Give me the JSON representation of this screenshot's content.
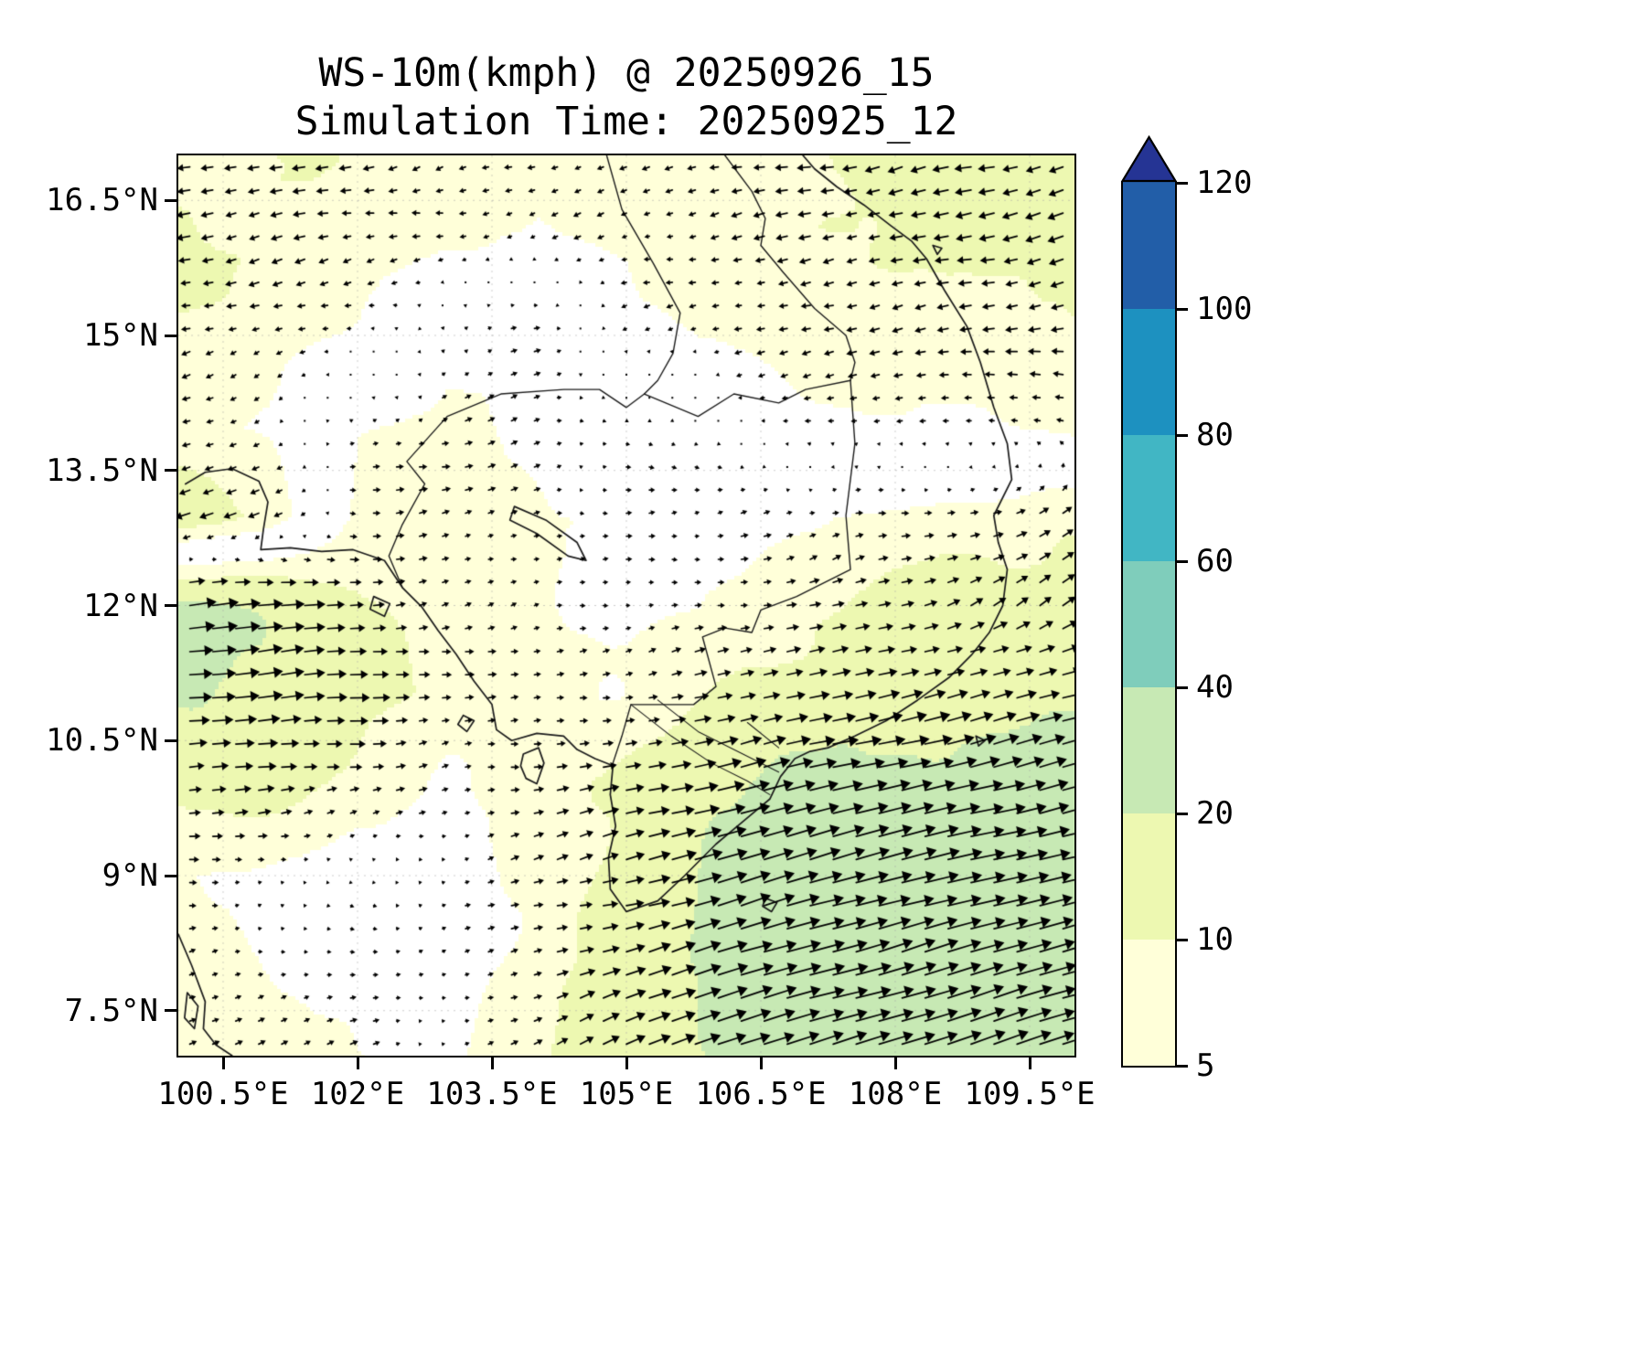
{
  "title": "WS-10m(kmph) @ 20250926_15",
  "subtitle": "Simulation Time: 20250925_12",
  "colorbar": {
    "levels": [
      5,
      10,
      20,
      40,
      60,
      80,
      100,
      120
    ],
    "tick_labels": [
      "5",
      "10",
      "20",
      "40",
      "60",
      "80",
      "100",
      "120"
    ],
    "band_colors": [
      "#ffffd9",
      "#edf8b1",
      "#c7e9b4",
      "#7fcdbb",
      "#41b6c4",
      "#1d91c0",
      "#225ea8"
    ],
    "over_color": "#253494",
    "under_color": "#ffffff",
    "extend": "max"
  },
  "chart_data": {
    "type": "heatmap",
    "subtype": "filled-contour 10m wind speed map with quiver wind vectors and coastlines",
    "title": "WS-10m(kmph) @ 20250926_15",
    "subtitle": "Simulation Time: 20250925_12",
    "variable": "WS-10m",
    "units": "kmph",
    "valid_time": "20250926_15",
    "simulation_time": "20250925_12",
    "lon_range": [
      100,
      110
    ],
    "lat_range": [
      7,
      17
    ],
    "x_ticks": [
      "100.5°E",
      "102°E",
      "103.5°E",
      "105°E",
      "106.5°E",
      "108°E",
      "109.5°E"
    ],
    "x_tick_values": [
      100.5,
      102,
      103.5,
      105,
      106.5,
      108,
      109.5
    ],
    "y_ticks": [
      "16.5°N",
      "15°N",
      "13.5°N",
      "12°N",
      "10.5°N",
      "9°N",
      "7.5°N"
    ],
    "y_tick_values": [
      16.5,
      15,
      13.5,
      12,
      10.5,
      9,
      7.5
    ],
    "levels": [
      5,
      10,
      20,
      40,
      60,
      80,
      100,
      120
    ],
    "level_colors": [
      "#ffffd9",
      "#edf8b1",
      "#c7e9b4",
      "#7fcdbb",
      "#41b6c4",
      "#1d91c0",
      "#225ea8"
    ],
    "under_color": "#ffffff",
    "over_color": "#253494",
    "grid": true,
    "legend_position": "right-colorbar",
    "wind_grid": {
      "lon": [
        100,
        101,
        102,
        103,
        104,
        105,
        106,
        107,
        108,
        109,
        110
      ],
      "lat": [
        7,
        8,
        9,
        10,
        11,
        12,
        13,
        14,
        15,
        16,
        17
      ],
      "u_kmph": [
        [
          8,
          7,
          5,
          4,
          8,
          18,
          26,
          28,
          30,
          30,
          30
        ],
        [
          7,
          5,
          3,
          3,
          7,
          16,
          26,
          29,
          30,
          30,
          30
        ],
        [
          6,
          4,
          2,
          3,
          8,
          15,
          25,
          28,
          29,
          29,
          28
        ],
        [
          12,
          14,
          8,
          5,
          8,
          14,
          22,
          26,
          27,
          27,
          26
        ],
        [
          20,
          22,
          16,
          8,
          6,
          7,
          12,
          16,
          18,
          18,
          17
        ],
        [
          22,
          20,
          12,
          7,
          5,
          5,
          6,
          8,
          10,
          11,
          10
        ],
        [
          -14,
          -8,
          6,
          6,
          5,
          4,
          4,
          5,
          6,
          7,
          8
        ],
        [
          -6,
          -4,
          4,
          5,
          4,
          3,
          3,
          -4,
          -5,
          -5,
          -6
        ],
        [
          -8,
          -6,
          -4,
          4,
          4,
          -3,
          -5,
          -7,
          -8,
          -9,
          -10
        ],
        [
          -10,
          -9,
          -7,
          -5,
          -4,
          -5,
          -7,
          -9,
          -11,
          -12,
          -12
        ],
        [
          -12,
          -11,
          -9,
          -8,
          -7,
          -8,
          -9,
          -11,
          -13,
          -14,
          -14
        ]
      ],
      "v_kmph": [
        [
          3,
          2,
          1,
          1,
          3,
          6,
          8,
          9,
          9,
          9,
          9
        ],
        [
          2,
          1,
          0,
          1,
          2,
          5,
          8,
          9,
          9,
          9,
          9
        ],
        [
          2,
          1,
          0,
          1,
          2,
          4,
          7,
          8,
          8,
          8,
          8
        ],
        [
          2,
          2,
          1,
          1,
          2,
          3,
          5,
          7,
          7,
          7,
          7
        ],
        [
          2,
          2,
          2,
          1,
          1,
          1,
          2,
          3,
          4,
          5,
          5
        ],
        [
          2,
          2,
          1,
          1,
          1,
          1,
          1,
          2,
          4,
          6,
          6
        ],
        [
          -5,
          -3,
          1,
          1,
          1,
          1,
          0,
          1,
          2,
          3,
          4
        ],
        [
          -2,
          -1,
          1,
          1,
          1,
          0,
          0,
          -1,
          -1,
          0,
          2
        ],
        [
          -2,
          -2,
          -1,
          1,
          1,
          -1,
          -1,
          -2,
          -2,
          -2,
          -1
        ],
        [
          -3,
          -2,
          -2,
          -1,
          -1,
          -1,
          -2,
          -2,
          -3,
          -3,
          -3
        ],
        [
          -3,
          -3,
          -2,
          -2,
          -2,
          -2,
          -2,
          -3,
          -3,
          -3,
          -3
        ]
      ]
    },
    "geo": {
      "coastlines": [
        [
          [
            100.08,
            13.35
          ],
          [
            100.3,
            13.48
          ],
          [
            100.6,
            13.52
          ],
          [
            100.9,
            13.38
          ],
          [
            101.0,
            13.15
          ],
          [
            100.95,
            12.85
          ],
          [
            100.92,
            12.62
          ],
          [
            101.25,
            12.64
          ],
          [
            101.6,
            12.6
          ],
          [
            101.95,
            12.62
          ],
          [
            102.3,
            12.5
          ],
          [
            102.5,
            12.2
          ],
          [
            102.72,
            11.98
          ],
          [
            102.9,
            11.72
          ],
          [
            103.1,
            11.46
          ],
          [
            103.3,
            11.16
          ],
          [
            103.5,
            10.9
          ],
          [
            103.55,
            10.62
          ],
          [
            103.72,
            10.5
          ],
          [
            104.0,
            10.58
          ],
          [
            104.3,
            10.55
          ],
          [
            104.45,
            10.4
          ],
          [
            104.65,
            10.3
          ],
          [
            104.85,
            10.22
          ],
          [
            104.82,
            9.9
          ],
          [
            104.88,
            9.55
          ],
          [
            104.8,
            9.2
          ],
          [
            104.82,
            8.85
          ],
          [
            105.0,
            8.6
          ],
          [
            105.35,
            8.72
          ],
          [
            105.65,
            9.0
          ],
          [
            106.0,
            9.35
          ],
          [
            106.3,
            9.6
          ],
          [
            106.6,
            9.85
          ],
          [
            106.72,
            10.1
          ],
          [
            106.88,
            10.3
          ],
          [
            107.05,
            10.38
          ],
          [
            107.25,
            10.42
          ],
          [
            107.55,
            10.55
          ],
          [
            107.9,
            10.72
          ],
          [
            108.25,
            10.95
          ],
          [
            108.6,
            11.2
          ],
          [
            108.85,
            11.45
          ],
          [
            109.05,
            11.7
          ],
          [
            109.2,
            12.0
          ],
          [
            109.25,
            12.4
          ],
          [
            109.15,
            12.7
          ],
          [
            109.1,
            13.0
          ],
          [
            109.3,
            13.4
          ],
          [
            109.25,
            13.8
          ],
          [
            109.1,
            14.2
          ],
          [
            108.95,
            14.7
          ],
          [
            108.8,
            15.1
          ],
          [
            108.55,
            15.5
          ],
          [
            108.35,
            15.85
          ],
          [
            108.18,
            16.05
          ],
          [
            107.95,
            16.22
          ],
          [
            107.65,
            16.45
          ],
          [
            107.35,
            16.65
          ],
          [
            107.1,
            16.85
          ],
          [
            106.97,
            17.0
          ]
        ],
        [
          [
            100.0,
            8.35
          ],
          [
            100.15,
            8.0
          ],
          [
            100.3,
            7.6
          ],
          [
            100.28,
            7.3
          ],
          [
            100.42,
            7.12
          ],
          [
            100.6,
            7.0
          ]
        ],
        [
          [
            100.1,
            7.7
          ],
          [
            100.22,
            7.55
          ],
          [
            100.18,
            7.3
          ],
          [
            100.07,
            7.42
          ],
          [
            100.1,
            7.7
          ]
        ],
        [
          [
            103.85,
            10.35
          ],
          [
            104.02,
            10.42
          ],
          [
            104.08,
            10.25
          ],
          [
            104.0,
            10.02
          ],
          [
            103.88,
            10.08
          ],
          [
            103.82,
            10.22
          ],
          [
            103.85,
            10.35
          ]
        ],
        [
          [
            102.18,
            12.1
          ],
          [
            102.36,
            12.02
          ],
          [
            102.3,
            11.88
          ],
          [
            102.14,
            11.96
          ],
          [
            102.18,
            12.1
          ]
        ],
        [
          [
            103.18,
            10.78
          ],
          [
            103.3,
            10.72
          ],
          [
            103.22,
            10.6
          ],
          [
            103.12,
            10.68
          ],
          [
            103.18,
            10.78
          ]
        ],
        [
          [
            106.55,
            8.75
          ],
          [
            106.68,
            8.7
          ],
          [
            106.62,
            8.6
          ],
          [
            106.52,
            8.66
          ],
          [
            106.55,
            8.75
          ]
        ],
        [
          [
            108.42,
            16.0
          ],
          [
            108.52,
            15.97
          ],
          [
            108.47,
            15.9
          ],
          [
            108.42,
            16.0
          ]
        ],
        [
          [
            108.9,
            10.55
          ],
          [
            109.0,
            10.5
          ],
          [
            108.93,
            10.44
          ],
          [
            108.9,
            10.55
          ]
        ],
        [
          [
            103.75,
            13.1
          ],
          [
            104.1,
            12.95
          ],
          [
            104.45,
            12.7
          ],
          [
            104.55,
            12.5
          ],
          [
            104.35,
            12.55
          ],
          [
            104.0,
            12.8
          ],
          [
            103.7,
            12.95
          ],
          [
            103.75,
            13.1
          ]
        ]
      ],
      "borders": [
        [
          [
            102.5,
            12.2
          ],
          [
            102.35,
            12.55
          ],
          [
            102.5,
            12.9
          ],
          [
            102.75,
            13.35
          ],
          [
            102.55,
            13.6
          ],
          [
            103.0,
            14.1
          ],
          [
            103.6,
            14.35
          ],
          [
            104.3,
            14.4
          ],
          [
            104.7,
            14.4
          ],
          [
            105.0,
            14.2
          ],
          [
            105.2,
            14.35
          ]
        ],
        [
          [
            105.2,
            14.35
          ],
          [
            105.8,
            14.1
          ],
          [
            106.2,
            14.35
          ],
          [
            106.7,
            14.25
          ],
          [
            107.0,
            14.4
          ],
          [
            107.5,
            14.5
          ],
          [
            107.55,
            13.8
          ],
          [
            107.45,
            13.0
          ],
          [
            107.5,
            12.4
          ],
          [
            106.9,
            12.1
          ],
          [
            106.5,
            11.95
          ],
          [
            106.4,
            11.7
          ],
          [
            106.1,
            11.75
          ],
          [
            105.85,
            11.65
          ],
          [
            106.0,
            11.1
          ],
          [
            105.75,
            10.9
          ],
          [
            105.4,
            10.9
          ],
          [
            105.05,
            10.9
          ],
          [
            104.95,
            10.55
          ],
          [
            104.85,
            10.25
          ]
        ],
        [
          [
            104.78,
            17.0
          ],
          [
            104.95,
            16.4
          ],
          [
            105.3,
            15.8
          ],
          [
            105.6,
            15.25
          ],
          [
            105.52,
            14.8
          ],
          [
            105.35,
            14.5
          ],
          [
            105.2,
            14.35
          ]
        ],
        [
          [
            106.1,
            17.0
          ],
          [
            106.4,
            16.6
          ],
          [
            106.55,
            16.3
          ],
          [
            106.5,
            16.0
          ],
          [
            106.75,
            15.7
          ],
          [
            107.1,
            15.3
          ],
          [
            107.45,
            15.0
          ],
          [
            107.55,
            14.7
          ],
          [
            107.5,
            14.5
          ]
        ]
      ],
      "rivers": [
        [
          [
            105.05,
            10.9
          ],
          [
            105.5,
            10.55
          ],
          [
            105.95,
            10.25
          ],
          [
            106.35,
            10.05
          ],
          [
            106.6,
            9.9
          ]
        ],
        [
          [
            105.35,
            10.95
          ],
          [
            105.8,
            10.6
          ],
          [
            106.3,
            10.35
          ],
          [
            106.7,
            10.15
          ]
        ],
        [
          [
            106.35,
            10.7
          ],
          [
            106.7,
            10.42
          ]
        ]
      ]
    }
  }
}
